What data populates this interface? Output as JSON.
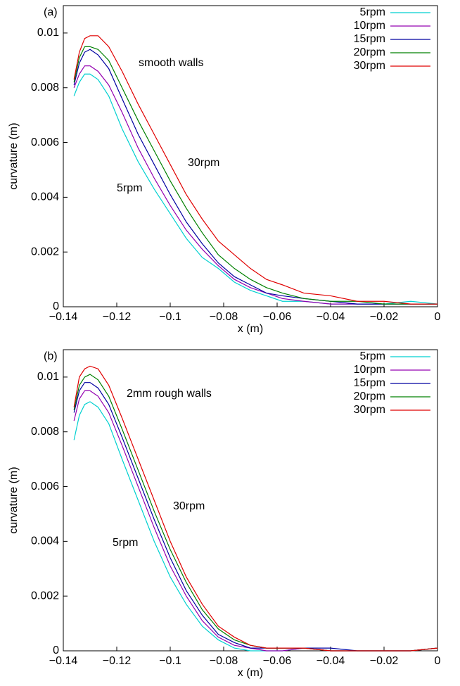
{
  "chart_data": [
    {
      "type": "line",
      "panel_label": "(a)",
      "xlabel": "x (m)",
      "ylabel": "curvature (m)",
      "annotations": [
        "smooth walls",
        "30rpm",
        "5rpm"
      ],
      "legend": "upper right",
      "grid": false,
      "xlim": [
        -0.14,
        0
      ],
      "ylim": [
        0,
        0.011
      ],
      "xticks": [
        {
          "value": -0.14,
          "label": "−0.14"
        },
        {
          "value": -0.12,
          "label": "−0.12"
        },
        {
          "value": -0.1,
          "label": "−0.1"
        },
        {
          "value": -0.08,
          "label": "−0.08"
        },
        {
          "value": -0.06,
          "label": "−0.06"
        },
        {
          "value": -0.04,
          "label": "−0.04"
        },
        {
          "value": -0.02,
          "label": "−0.02"
        },
        0
      ],
      "yticks": [
        0,
        0.002,
        0.004,
        0.006,
        0.008,
        0.01
      ],
      "x": [
        -0.136,
        -0.134,
        -0.132,
        -0.13,
        -0.127,
        -0.123,
        -0.118,
        -0.112,
        -0.106,
        -0.1,
        -0.094,
        -0.088,
        -0.082,
        -0.076,
        -0.07,
        -0.064,
        -0.058,
        -0.05,
        -0.04,
        -0.03,
        -0.02,
        -0.01,
        0
      ],
      "series": [
        {
          "name": "5rpm",
          "color": "#00d0d0",
          "values": [
            0.0077,
            0.0082,
            0.0085,
            0.0085,
            0.0083,
            0.0077,
            0.0065,
            0.0053,
            0.0043,
            0.0034,
            0.0025,
            0.0018,
            0.0014,
            0.0009,
            0.0006,
            0.0004,
            0.0002,
            0.0002,
            0.0001,
            0.0001,
            0.0001,
            0.0002,
            0.0001
          ]
        },
        {
          "name": "10rpm",
          "color": "#9400b0",
          "values": [
            0.008,
            0.0085,
            0.0088,
            0.0088,
            0.0086,
            0.0081,
            0.0071,
            0.0058,
            0.0047,
            0.0037,
            0.0028,
            0.0021,
            0.0015,
            0.001,
            0.0007,
            0.0005,
            0.0003,
            0.0002,
            0.0001,
            0.0001,
            0.0001,
            0.0001,
            0.0001
          ]
        },
        {
          "name": "15rpm",
          "color": "#0000a0",
          "values": [
            0.0081,
            0.0089,
            0.0093,
            0.0094,
            0.0092,
            0.0087,
            0.0076,
            0.0063,
            0.0052,
            0.0041,
            0.0031,
            0.0023,
            0.0016,
            0.0011,
            0.0008,
            0.0005,
            0.0004,
            0.0003,
            0.0002,
            0.0001,
            0.0001,
            0.0001,
            0.0001
          ]
        },
        {
          "name": "20rpm",
          "color": "#008000",
          "values": [
            0.0082,
            0.0091,
            0.0095,
            0.0095,
            0.0094,
            0.009,
            0.008,
            0.0068,
            0.0057,
            0.0046,
            0.0036,
            0.0027,
            0.0019,
            0.0014,
            0.001,
            0.0007,
            0.0005,
            0.0003,
            0.0002,
            0.0002,
            0.0001,
            0.0001,
            0.0001
          ]
        },
        {
          "name": "30rpm",
          "color": "#e00000",
          "values": [
            0.0083,
            0.0093,
            0.0098,
            0.0099,
            0.0099,
            0.0095,
            0.0086,
            0.0074,
            0.0063,
            0.0052,
            0.0041,
            0.0032,
            0.0024,
            0.0019,
            0.0014,
            0.001,
            0.0008,
            0.0005,
            0.0004,
            0.0002,
            0.0002,
            0.0001,
            0.0001
          ]
        }
      ]
    },
    {
      "type": "line",
      "panel_label": "(b)",
      "xlabel": "x (m)",
      "ylabel": "curvature (m)",
      "annotations": [
        "2mm rough walls",
        "30rpm",
        "5rpm"
      ],
      "legend": "upper right",
      "grid": false,
      "xlim": [
        -0.14,
        0
      ],
      "ylim": [
        0,
        0.011
      ],
      "xticks": [
        {
          "value": -0.14,
          "label": "−0.14"
        },
        {
          "value": -0.12,
          "label": "−0.12"
        },
        {
          "value": -0.1,
          "label": "−0.1"
        },
        {
          "value": -0.08,
          "label": "−0.08"
        },
        {
          "value": -0.06,
          "label": "−0.06"
        },
        {
          "value": -0.04,
          "label": "−0.04"
        },
        {
          "value": -0.02,
          "label": "−0.02"
        },
        0
      ],
      "yticks": [
        0,
        0.002,
        0.004,
        0.006,
        0.008,
        0.01
      ],
      "x": [
        -0.136,
        -0.134,
        -0.132,
        -0.13,
        -0.127,
        -0.123,
        -0.118,
        -0.112,
        -0.106,
        -0.1,
        -0.094,
        -0.088,
        -0.082,
        -0.076,
        -0.07,
        -0.064,
        -0.058,
        -0.05,
        -0.04,
        -0.03,
        -0.02,
        -0.01,
        0
      ],
      "series": [
        {
          "name": "5rpm",
          "color": "#00d0d0",
          "values": [
            0.0077,
            0.0086,
            0.009,
            0.0091,
            0.0089,
            0.0083,
            0.007,
            0.0055,
            0.004,
            0.0027,
            0.0017,
            0.0009,
            0.0004,
            0.0001,
            0,
            0,
            0,
            0.0001,
            0,
            0,
            0,
            0,
            0.0001
          ]
        },
        {
          "name": "10rpm",
          "color": "#9400b0",
          "values": [
            0.0084,
            0.0092,
            0.0095,
            0.0095,
            0.0093,
            0.0087,
            0.0075,
            0.006,
            0.0045,
            0.0031,
            0.002,
            0.0011,
            0.0005,
            0.0002,
            0.0001,
            0,
            0,
            0.0001,
            0,
            0,
            0,
            0,
            0.0001
          ]
        },
        {
          "name": "15rpm",
          "color": "#0000a0",
          "values": [
            0.0087,
            0.0095,
            0.0098,
            0.0098,
            0.0096,
            0.009,
            0.0078,
            0.0063,
            0.0048,
            0.0034,
            0.0022,
            0.0013,
            0.0006,
            0.0003,
            0.0001,
            0.0001,
            0.0001,
            0.0001,
            0.0001,
            0,
            0,
            0,
            0.0001
          ]
        },
        {
          "name": "20rpm",
          "color": "#008000",
          "values": [
            0.0088,
            0.0097,
            0.01,
            0.0101,
            0.0099,
            0.0093,
            0.0081,
            0.0066,
            0.0051,
            0.0037,
            0.0025,
            0.0015,
            0.0008,
            0.0004,
            0.0002,
            0.0001,
            0.0001,
            0.0001,
            0,
            0,
            0,
            0,
            0.0001
          ]
        },
        {
          "name": "30rpm",
          "color": "#e00000",
          "values": [
            0.0089,
            0.01,
            0.0103,
            0.0104,
            0.0103,
            0.0097,
            0.0085,
            0.007,
            0.0055,
            0.004,
            0.0027,
            0.0017,
            0.0009,
            0.0005,
            0.0002,
            0.0001,
            0.0001,
            0.0001,
            0,
            0,
            0,
            0,
            0.0001
          ]
        }
      ]
    }
  ]
}
